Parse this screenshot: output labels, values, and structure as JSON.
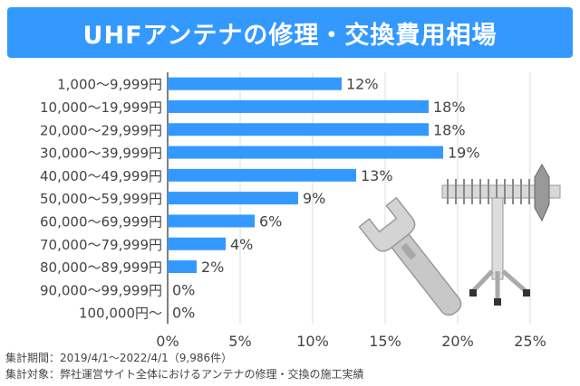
{
  "title": "UHFアンテナの修理・交換費用相場",
  "colors": {
    "bar": "#3399ff",
    "title_bg": "#3399ff",
    "grid": "#dddddd",
    "text": "#444444"
  },
  "icons": [
    "wrench-icon",
    "uhf-antenna-icon"
  ],
  "footnotes": {
    "period": "集計期間：2019/4/1～2022/4/1（9,986件）",
    "target": "集計対象：弊社運営サイト全体におけるアンテナの修理・交換の施工実績"
  },
  "chart_data": {
    "type": "bar",
    "orientation": "horizontal",
    "categories": [
      "1,000～9,999円",
      "10,000～19,999円",
      "20,000～29,999円",
      "30,000～39,999円",
      "40,000～49,999円",
      "50,000～59,999円",
      "60,000～69,999円",
      "70,000～79,999円",
      "80,000～89,999円",
      "90,000～99,999円",
      "100,000円～"
    ],
    "values": [
      12,
      18,
      18,
      19,
      13,
      9,
      6,
      4,
      2,
      0,
      0
    ],
    "value_labels": [
      "12%",
      "18%",
      "18%",
      "19%",
      "13%",
      "9%",
      "6%",
      "4%",
      "2%",
      "0%",
      "0%"
    ],
    "xlim": [
      0,
      25
    ],
    "xticks": [
      0,
      5,
      10,
      15,
      20,
      25
    ],
    "xtick_labels": [
      "0%",
      "5%",
      "10%",
      "15%",
      "20%",
      "25%"
    ],
    "grid": true
  }
}
